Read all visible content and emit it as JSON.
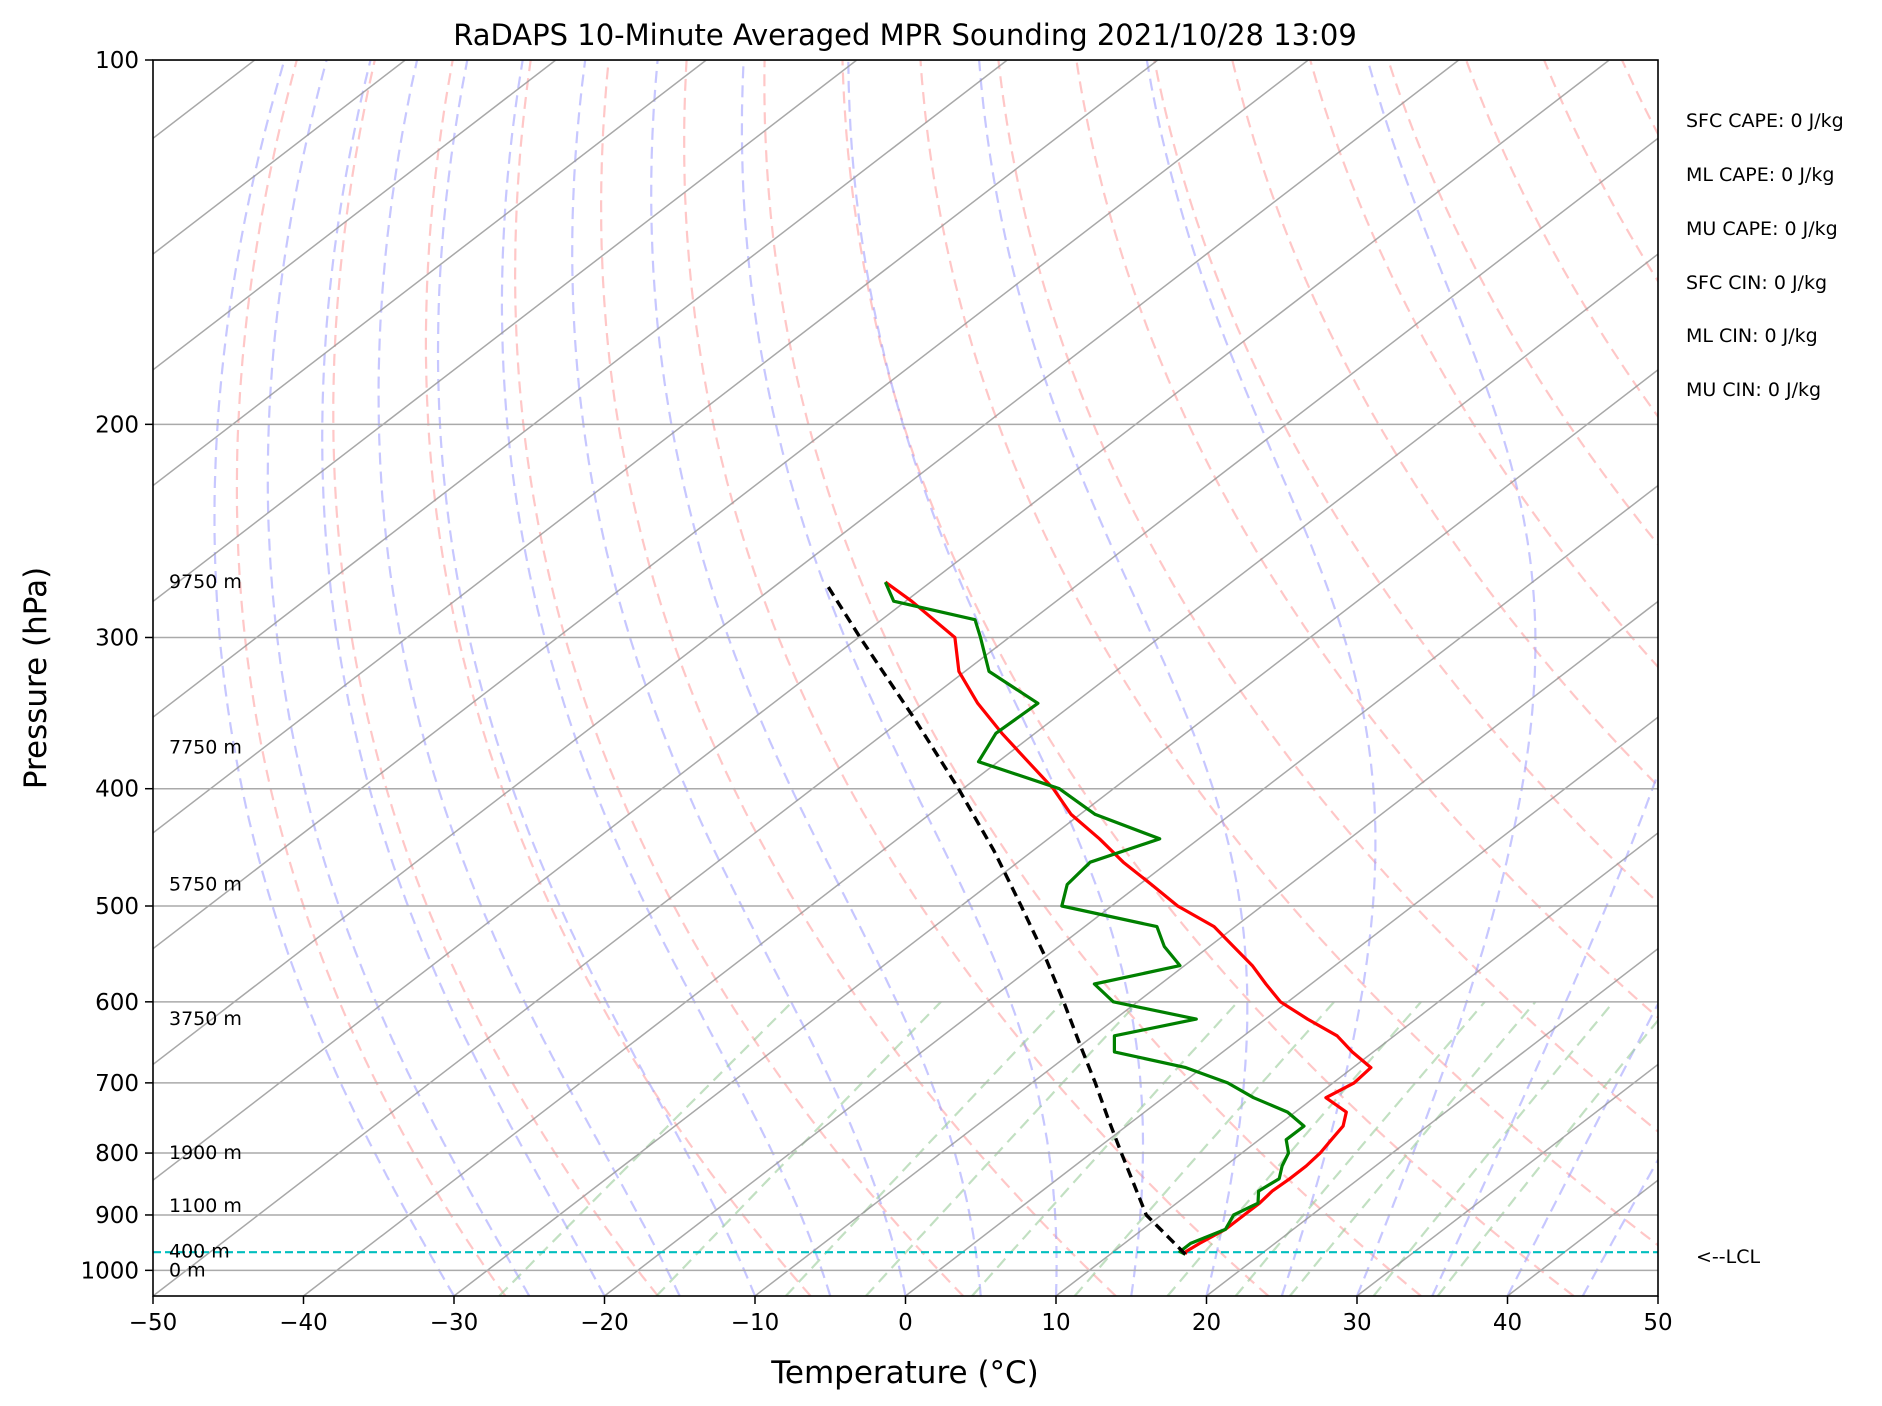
{
  "chart_data": {
    "type": "line",
    "title": "RaDAPS 10-Minute Averaged MPR Sounding 2021/10/28 13:09",
    "xlabel": "Temperature (°C)",
    "ylabel": "Pressure (hPa)",
    "xlim": [
      -50,
      50
    ],
    "ylim": [
      1050,
      100
    ],
    "y_scale": "log",
    "skew": "skew-T log-P",
    "grid": true,
    "x_ticks": [
      -50,
      -40,
      -30,
      -20,
      -10,
      0,
      10,
      20,
      30,
      40,
      50
    ],
    "x_tick_labels": [
      "−50",
      "−40",
      "−30",
      "−20",
      "−10",
      "0",
      "10",
      "20",
      "30",
      "40",
      "50"
    ],
    "y_ticks": [
      100,
      200,
      300,
      400,
      500,
      600,
      700,
      800,
      900,
      1000
    ],
    "y_tick_labels": [
      "100",
      "200",
      "300",
      "400",
      "500",
      "600",
      "700",
      "800",
      "900",
      "1000"
    ],
    "series": [
      {
        "role": "temperature",
        "color": "#ff0000",
        "pressure": [
          970,
          965,
          950,
          925,
          900,
          880,
          860,
          840,
          820,
          800,
          780,
          760,
          740,
          720,
          700,
          680,
          660,
          640,
          620,
          600,
          580,
          560,
          540,
          520,
          500,
          480,
          460,
          440,
          420,
          400,
          380,
          360,
          340,
          320,
          300,
          280,
          270
        ],
        "temperature": [
          15.0,
          14.8,
          15.0,
          15.5,
          15.5,
          15.5,
          15.3,
          15.4,
          15.4,
          15.2,
          14.8,
          14.4,
          13.4,
          10.8,
          11.4,
          11.2,
          8.6,
          6.2,
          2.8,
          -0.5,
          -3.0,
          -5.5,
          -8.4,
          -11.4,
          -15.6,
          -19.2,
          -23.0,
          -26.6,
          -30.6,
          -34.0,
          -38.0,
          -42.2,
          -46.4,
          -50.4,
          -53.6,
          -59.6,
          -63.0
        ]
      },
      {
        "role": "dewpoint",
        "color": "#008000",
        "pressure": [
          970,
          965,
          950,
          925,
          900,
          880,
          860,
          840,
          820,
          800,
          780,
          760,
          740,
          720,
          700,
          680,
          660,
          640,
          620,
          600,
          580,
          560,
          540,
          520,
          500,
          480,
          460,
          440,
          420,
          400,
          380,
          360,
          340,
          320,
          300,
          290,
          280,
          270
        ],
        "dewpoint": [
          15.0,
          14.4,
          14.4,
          15.5,
          14.8,
          15.4,
          14.4,
          14.7,
          13.8,
          13.1,
          11.8,
          11.8,
          9.5,
          6.0,
          3.0,
          -1.1,
          -7.2,
          -8.6,
          -4.6,
          -11.6,
          -14.4,
          -10.3,
          -13.0,
          -15.2,
          -23.3,
          -24.8,
          -25.2,
          -22.6,
          -29.0,
          -33.6,
          -41.3,
          -42.6,
          -42.4,
          -48.4,
          -51.9,
          -53.8,
          -60.8,
          -63.0
        ]
      },
      {
        "role": "parcel",
        "color": "#000000",
        "pressure": [
          970,
          900,
          850,
          800,
          750,
          700,
          650,
          600,
          550,
          500,
          450,
          400,
          350,
          300,
          270
        ],
        "temperature": [
          15.0,
          9.0,
          5.6,
          2.0,
          -1.8,
          -5.8,
          -10.2,
          -14.9,
          -20.1,
          -26.0,
          -32.6,
          -40.3,
          -49.3,
          -59.9,
          -67.0
        ]
      }
    ],
    "lcl": {
      "pressure": 966,
      "label": "<--LCL",
      "color": "#00bfbf"
    },
    "height_labels": [
      {
        "pressure": 270,
        "label": "9750 m"
      },
      {
        "pressure": 370,
        "label": "7750 m"
      },
      {
        "pressure": 480,
        "label": "5750 m"
      },
      {
        "pressure": 620,
        "label": "3750 m"
      },
      {
        "pressure": 800,
        "label": "1900 m"
      },
      {
        "pressure": 885,
        "label": "1100 m"
      },
      {
        "pressure": 965,
        "label": "400 m"
      },
      {
        "pressure": 1000,
        "label": "0 m"
      }
    ],
    "stats": [
      "SFC CAPE: 0 J/kg",
      "ML CAPE: 0 J/kg",
      "MU CAPE: 0 J/kg",
      "SFC CIN: 0 J/kg",
      "ML CIN: 0 J/kg",
      "MU CIN: 0 J/kg"
    ],
    "background_lines": {
      "dry_adiabats": {
        "color": "#ff9999",
        "style": "dashed"
      },
      "moist_adiabats": {
        "color": "#9999ff",
        "style": "dashed"
      },
      "mixing_ratio": {
        "color": "#99cc99",
        "style": "dashed"
      },
      "isotherms": {
        "color": "#999999",
        "style": "solid"
      }
    }
  }
}
